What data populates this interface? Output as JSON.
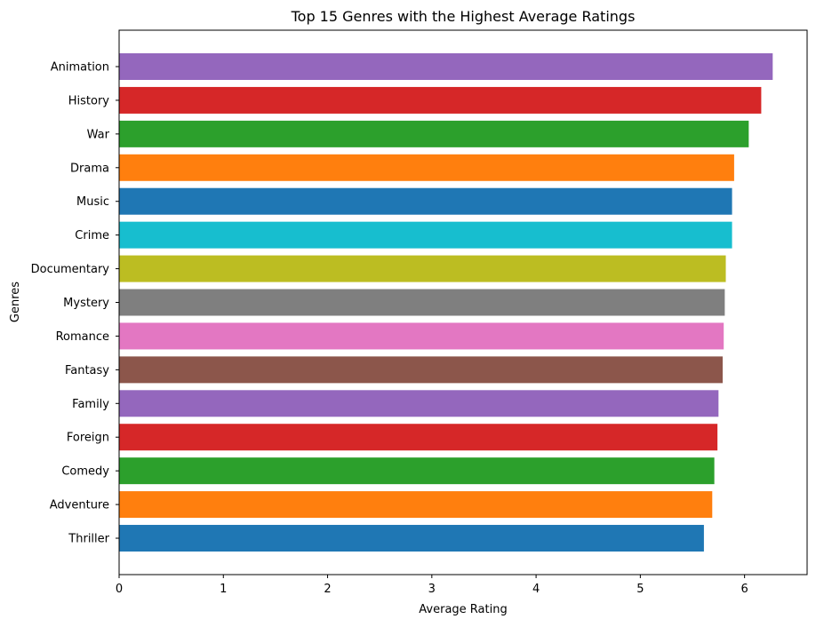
{
  "chart_data": {
    "type": "bar",
    "orientation": "horizontal",
    "title": "Top 15 Genres with the Highest Average Ratings",
    "xlabel": "Average Rating",
    "ylabel": "Genres",
    "xlim": [
      0,
      6.6
    ],
    "xticks": [
      0,
      1,
      2,
      3,
      4,
      5,
      6
    ],
    "grid": false,
    "categories": [
      "Animation",
      "History",
      "War",
      "Drama",
      "Music",
      "Crime",
      "Documentary",
      "Mystery",
      "Romance",
      "Fantasy",
      "Family",
      "Foreign",
      "Comedy",
      "Adventure",
      "Thriller"
    ],
    "values": [
      6.27,
      6.16,
      6.04,
      5.9,
      5.88,
      5.88,
      5.82,
      5.81,
      5.8,
      5.79,
      5.75,
      5.74,
      5.71,
      5.69,
      5.61
    ],
    "colors": [
      "#9467bd",
      "#d62728",
      "#2ca02c",
      "#ff7f0e",
      "#1f77b4",
      "#17becf",
      "#bcbd22",
      "#7f7f7f",
      "#e377c2",
      "#8c564b",
      "#9467bd",
      "#d62728",
      "#2ca02c",
      "#ff7f0e",
      "#1f77b4"
    ]
  }
}
